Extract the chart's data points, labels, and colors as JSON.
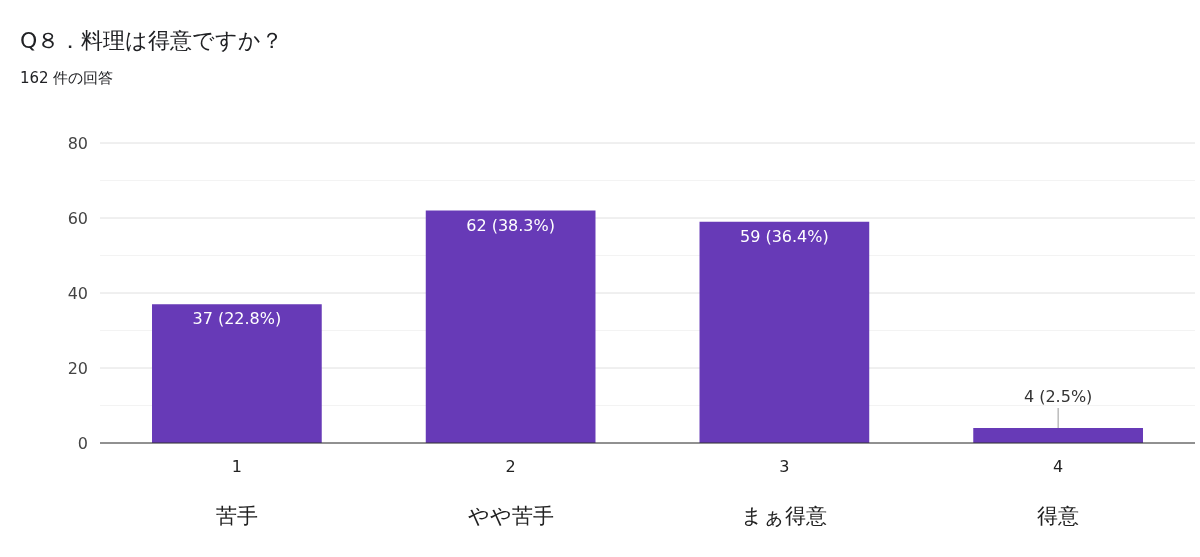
{
  "chart_data": {
    "type": "bar",
    "title": "Q８．料理は得意ですか？",
    "subtitle": "162 件の回答",
    "categories": [
      "1\n苦手",
      "2\nやや苦手",
      "3\nまぁ得意",
      "4\n得意"
    ],
    "values": [
      37,
      62,
      59,
      4
    ],
    "color": "#673ab7",
    "value_labels": [
      "37 (22.8%)",
      "62 (38.3%)",
      "59 (36.4%)",
      "4 (2.5%)"
    ],
    "ylim": [
      0,
      80
    ],
    "yticks": [
      0,
      {
        "value": 10,
        "label": null
      },
      20,
      {
        "value": 30,
        "label": null
      },
      40,
      {
        "value": 50,
        "label": null
      },
      60,
      {
        "value": 70,
        "label": null
      },
      80
    ],
    "grid": true
  }
}
